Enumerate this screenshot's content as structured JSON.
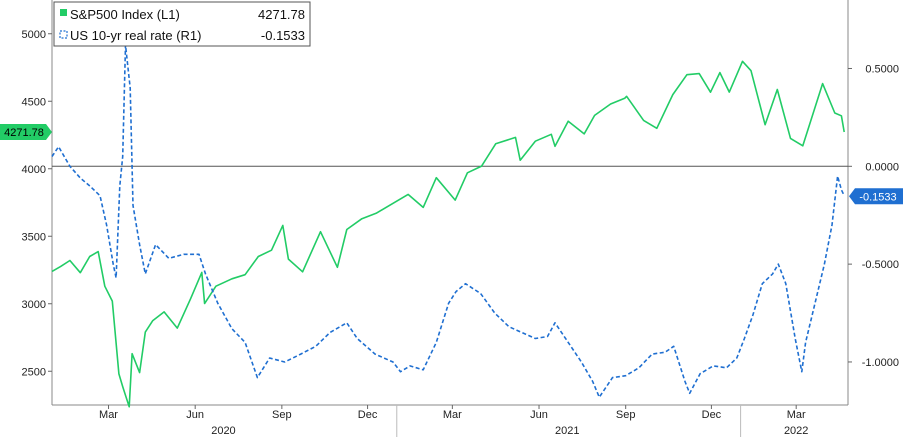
{
  "chart_data": {
    "type": "line",
    "title": "",
    "legend": {
      "placement": "top-left",
      "entries": [
        {
          "label": "S&P500 Index (L1)",
          "value": "4271.78",
          "color": "#22cc66",
          "dash": "solid"
        },
        {
          "label": "US 10-yr real rate (R1)",
          "value": "-0.1533",
          "color": "#1f6fd1",
          "dash": "dashed"
        }
      ]
    },
    "x_axis": {
      "range": [
        "2020-01-01",
        "2022-04-25"
      ],
      "month_ticks": [
        {
          "date": "2020-03-01",
          "label": "Mar"
        },
        {
          "date": "2020-06-01",
          "label": "Jun"
        },
        {
          "date": "2020-09-01",
          "label": "Sep"
        },
        {
          "date": "2020-12-01",
          "label": "Dec"
        },
        {
          "date": "2021-03-01",
          "label": "Mar"
        },
        {
          "date": "2021-06-01",
          "label": "Jun"
        },
        {
          "date": "2021-09-01",
          "label": "Sep"
        },
        {
          "date": "2021-12-01",
          "label": "Dec"
        },
        {
          "date": "2022-03-01",
          "label": "Mar"
        }
      ],
      "year_labels": [
        {
          "date": "2020-07-01",
          "label": "2020"
        },
        {
          "date": "2021-07-01",
          "label": "2021"
        },
        {
          "date": "2022-03-01",
          "label": "2022"
        }
      ],
      "year_boundaries": [
        "2021-01-01",
        "2022-01-01"
      ]
    },
    "y_left": {
      "range": [
        2250,
        5250
      ],
      "ticks": [
        2500,
        3000,
        3500,
        4000,
        4500,
        5000
      ],
      "tick_labels": [
        "2500",
        "3000",
        "3500",
        "4000",
        "4500",
        "5000"
      ]
    },
    "y_right": {
      "range": [
        -1.22,
        0.85
      ],
      "ticks": [
        -1.0,
        -0.5,
        0.0,
        0.5
      ],
      "tick_labels": [
        "-1.0000",
        "-0.5000",
        "0.0000",
        "0.5000"
      ],
      "zero_line": true
    },
    "grid": false,
    "series": [
      {
        "name": "S&P500 Index (L1)",
        "axis": "left",
        "color": "#22cc66",
        "dash": "solid",
        "points": [
          [
            "2020-01-01",
            3240
          ],
          [
            "2020-01-10",
            3275
          ],
          [
            "2020-01-20",
            3320
          ],
          [
            "2020-01-31",
            3230
          ],
          [
            "2020-02-10",
            3350
          ],
          [
            "2020-02-19",
            3386
          ],
          [
            "2020-02-26",
            3130
          ],
          [
            "2020-03-05",
            3020
          ],
          [
            "2020-03-12",
            2480
          ],
          [
            "2020-03-16",
            2386
          ],
          [
            "2020-03-23",
            2237
          ],
          [
            "2020-03-26",
            2630
          ],
          [
            "2020-04-03",
            2490
          ],
          [
            "2020-04-09",
            2790
          ],
          [
            "2020-04-17",
            2875
          ],
          [
            "2020-04-29",
            2940
          ],
          [
            "2020-05-13",
            2820
          ],
          [
            "2020-05-27",
            3036
          ],
          [
            "2020-06-08",
            3232
          ],
          [
            "2020-06-11",
            3002
          ],
          [
            "2020-06-23",
            3130
          ],
          [
            "2020-07-10",
            3185
          ],
          [
            "2020-07-24",
            3215
          ],
          [
            "2020-08-07",
            3350
          ],
          [
            "2020-08-21",
            3397
          ],
          [
            "2020-09-02",
            3580
          ],
          [
            "2020-09-08",
            3331
          ],
          [
            "2020-09-23",
            3237
          ],
          [
            "2020-10-12",
            3534
          ],
          [
            "2020-10-30",
            3270
          ],
          [
            "2020-11-09",
            3550
          ],
          [
            "2020-11-25",
            3630
          ],
          [
            "2020-12-10",
            3670
          ],
          [
            "2020-12-31",
            3756
          ],
          [
            "2021-01-13",
            3810
          ],
          [
            "2021-01-29",
            3714
          ],
          [
            "2021-02-12",
            3934
          ],
          [
            "2021-03-04",
            3768
          ],
          [
            "2021-03-17",
            3970
          ],
          [
            "2021-04-01",
            4020
          ],
          [
            "2021-04-16",
            4185
          ],
          [
            "2021-05-07",
            4232
          ],
          [
            "2021-05-12",
            4063
          ],
          [
            "2021-05-28",
            4204
          ],
          [
            "2021-06-14",
            4255
          ],
          [
            "2021-06-18",
            4166
          ],
          [
            "2021-07-02",
            4352
          ],
          [
            "2021-07-19",
            4258
          ],
          [
            "2021-07-30",
            4395
          ],
          [
            "2021-08-16",
            4480
          ],
          [
            "2021-08-31",
            4522
          ],
          [
            "2021-09-02",
            4537
          ],
          [
            "2021-09-20",
            4358
          ],
          [
            "2021-10-04",
            4300
          ],
          [
            "2021-10-21",
            4549
          ],
          [
            "2021-11-05",
            4697
          ],
          [
            "2021-11-18",
            4705
          ],
          [
            "2021-11-30",
            4567
          ],
          [
            "2021-12-10",
            4712
          ],
          [
            "2021-12-20",
            4568
          ],
          [
            "2022-01-03",
            4796
          ],
          [
            "2022-01-12",
            4726
          ],
          [
            "2022-01-27",
            4326
          ],
          [
            "2022-02-09",
            4587
          ],
          [
            "2022-02-23",
            4225
          ],
          [
            "2022-03-08",
            4170
          ],
          [
            "2022-03-29",
            4631
          ],
          [
            "2022-04-11",
            4413
          ],
          [
            "2022-04-18",
            4392
          ],
          [
            "2022-04-21",
            4272
          ]
        ]
      },
      {
        "name": "US 10-yr real rate (R1)",
        "axis": "right",
        "color": "#1f6fd1",
        "dash": "dashed",
        "points": [
          [
            "2020-01-01",
            0.05
          ],
          [
            "2020-01-08",
            0.1
          ],
          [
            "2020-01-20",
            0.0
          ],
          [
            "2020-01-31",
            -0.06
          ],
          [
            "2020-02-10",
            -0.1
          ],
          [
            "2020-02-21",
            -0.15
          ],
          [
            "2020-02-28",
            -0.3
          ],
          [
            "2020-03-06",
            -0.5
          ],
          [
            "2020-03-09",
            -0.57
          ],
          [
            "2020-03-13",
            -0.1
          ],
          [
            "2020-03-16",
            0.05
          ],
          [
            "2020-03-19",
            0.62
          ],
          [
            "2020-03-24",
            0.4
          ],
          [
            "2020-03-27",
            -0.2
          ],
          [
            "2020-04-03",
            -0.4
          ],
          [
            "2020-04-09",
            -0.55
          ],
          [
            "2020-04-20",
            -0.4
          ],
          [
            "2020-05-04",
            -0.47
          ],
          [
            "2020-05-20",
            -0.45
          ],
          [
            "2020-06-05",
            -0.45
          ],
          [
            "2020-06-12",
            -0.55
          ],
          [
            "2020-06-25",
            -0.7
          ],
          [
            "2020-07-10",
            -0.83
          ],
          [
            "2020-07-24",
            -0.9
          ],
          [
            "2020-08-06",
            -1.08
          ],
          [
            "2020-08-19",
            -0.98
          ],
          [
            "2020-09-04",
            -1.0
          ],
          [
            "2020-09-21",
            -0.96
          ],
          [
            "2020-10-07",
            -0.92
          ],
          [
            "2020-10-22",
            -0.85
          ],
          [
            "2020-11-09",
            -0.8
          ],
          [
            "2020-11-20",
            -0.88
          ],
          [
            "2020-12-09",
            -0.96
          ],
          [
            "2020-12-28",
            -1.0
          ],
          [
            "2021-01-05",
            -1.05
          ],
          [
            "2021-01-15",
            -1.02
          ],
          [
            "2021-01-29",
            -1.04
          ],
          [
            "2021-02-12",
            -0.9
          ],
          [
            "2021-02-25",
            -0.7
          ],
          [
            "2021-03-05",
            -0.64
          ],
          [
            "2021-03-15",
            -0.6
          ],
          [
            "2021-03-31",
            -0.65
          ],
          [
            "2021-04-15",
            -0.75
          ],
          [
            "2021-04-30",
            -0.82
          ],
          [
            "2021-05-14",
            -0.85
          ],
          [
            "2021-05-28",
            -0.88
          ],
          [
            "2021-06-10",
            -0.87
          ],
          [
            "2021-06-18",
            -0.8
          ],
          [
            "2021-07-02",
            -0.9
          ],
          [
            "2021-07-16",
            -1.0
          ],
          [
            "2021-07-28",
            -1.1
          ],
          [
            "2021-08-04",
            -1.18
          ],
          [
            "2021-08-18",
            -1.08
          ],
          [
            "2021-09-01",
            -1.07
          ],
          [
            "2021-09-15",
            -1.03
          ],
          [
            "2021-09-29",
            -0.96
          ],
          [
            "2021-10-13",
            -0.95
          ],
          [
            "2021-10-22",
            -0.92
          ],
          [
            "2021-11-03",
            -1.1
          ],
          [
            "2021-11-08",
            -1.16
          ],
          [
            "2021-11-19",
            -1.06
          ],
          [
            "2021-12-03",
            -1.02
          ],
          [
            "2021-12-17",
            -1.03
          ],
          [
            "2021-12-28",
            -0.98
          ],
          [
            "2022-01-05",
            -0.88
          ],
          [
            "2022-01-14",
            -0.76
          ],
          [
            "2022-01-24",
            -0.6
          ],
          [
            "2022-02-04",
            -0.55
          ],
          [
            "2022-02-10",
            -0.5
          ],
          [
            "2022-02-18",
            -0.6
          ],
          [
            "2022-02-28",
            -0.88
          ],
          [
            "2022-03-07",
            -1.05
          ],
          [
            "2022-03-11",
            -0.9
          ],
          [
            "2022-03-21",
            -0.7
          ],
          [
            "2022-03-31",
            -0.5
          ],
          [
            "2022-04-08",
            -0.3
          ],
          [
            "2022-04-14",
            -0.05
          ],
          [
            "2022-04-18",
            -0.12
          ],
          [
            "2022-04-21",
            -0.15
          ]
        ]
      }
    ],
    "last_value_tags": [
      {
        "axis": "left",
        "value": 4271.78,
        "label": "4271.78",
        "color": "#22cc66"
      },
      {
        "axis": "right",
        "value": -0.1533,
        "label": "-0.1533",
        "color": "#1f6fd1"
      }
    ]
  }
}
